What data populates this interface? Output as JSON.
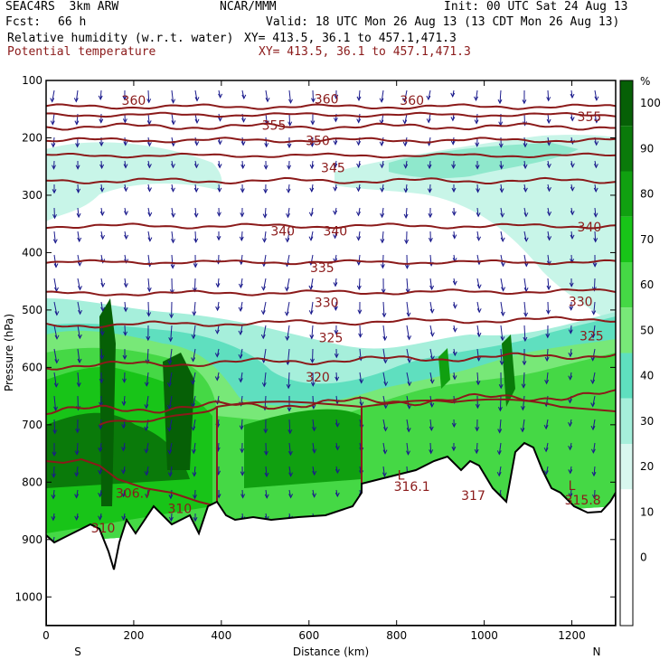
{
  "header": {
    "model": "SEAC4RS  3km ARW",
    "org": "NCAR/MMM",
    "init": "Init: 00 UTC Sat 24 Aug 13",
    "fcst_label": "Fcst:",
    "fcst_value": "66 h",
    "valid": "Valid: 18 UTC Mon 26 Aug 13 (13 CDT Mon 26 Aug 13)",
    "field1": "Relative humidity (w.r.t. water)",
    "field1_xy": "XY= 413.5, 36.1 to 457.1,471.3",
    "field2": "Potential temperature",
    "field2_xy": "XY= 413.5, 36.1 to 457.1,471.3"
  },
  "colors": {
    "theta": "#8b1a1a",
    "wind": "#1a1a8c",
    "terrain": "#000000"
  },
  "chart_data": {
    "type": "cross-section",
    "xlabel": "Distance (km)",
    "ylabel": "Pressure (hPa)",
    "xlim": [
      0,
      1300
    ],
    "ylim": [
      1050,
      100
    ],
    "x_ticks": [
      0,
      200,
      400,
      600,
      800,
      1000,
      1200
    ],
    "y_ticks": [
      100,
      200,
      300,
      400,
      500,
      600,
      700,
      800,
      900,
      1000
    ],
    "end_labels": {
      "left": "S",
      "right": "N"
    },
    "colorbar": {
      "unit": "%",
      "labels": [
        "0",
        "10",
        "20",
        "30",
        "40",
        "50",
        "60",
        "70",
        "80",
        "90",
        "100"
      ],
      "colors": [
        "#ffffff",
        "#ffffff",
        "#ffffff",
        "#d8f7ef",
        "#a6efdb",
        "#5fdfbf",
        "#78e878",
        "#45d845",
        "#18c418",
        "#10a010",
        "#0a7a0a",
        "#066006"
      ]
    },
    "theta_labels": [
      {
        "x": 200,
        "p": 135,
        "text": "360"
      },
      {
        "x": 640,
        "p": 132,
        "text": "360"
      },
      {
        "x": 835,
        "p": 135,
        "text": "360"
      },
      {
        "x": 520,
        "p": 178,
        "text": "355"
      },
      {
        "x": 1240,
        "p": 163,
        "text": "355"
      },
      {
        "x": 620,
        "p": 205,
        "text": "350"
      },
      {
        "x": 655,
        "p": 252,
        "text": "345"
      },
      {
        "x": 540,
        "p": 362,
        "text": "340"
      },
      {
        "x": 660,
        "p": 362,
        "text": "340"
      },
      {
        "x": 1240,
        "p": 355,
        "text": "340"
      },
      {
        "x": 630,
        "p": 426,
        "text": "335"
      },
      {
        "x": 640,
        "p": 487,
        "text": "330"
      },
      {
        "x": 1220,
        "p": 485,
        "text": "330"
      },
      {
        "x": 650,
        "p": 548,
        "text": "325"
      },
      {
        "x": 1245,
        "p": 545,
        "text": "325"
      },
      {
        "x": 620,
        "p": 617,
        "text": "320"
      },
      {
        "x": 305,
        "p": 846,
        "text": "310"
      },
      {
        "x": 200,
        "p": 819,
        "text": "306.7"
      },
      {
        "x": 130,
        "p": 880,
        "text": "310"
      },
      {
        "x": 810,
        "p": 788,
        "text": "L"
      },
      {
        "x": 835,
        "p": 807,
        "text": "316.1"
      },
      {
        "x": 975,
        "p": 823,
        "text": "317"
      },
      {
        "x": 1200,
        "p": 806,
        "text": "L"
      },
      {
        "x": 1225,
        "p": 831,
        "text": "315.8"
      }
    ]
  }
}
